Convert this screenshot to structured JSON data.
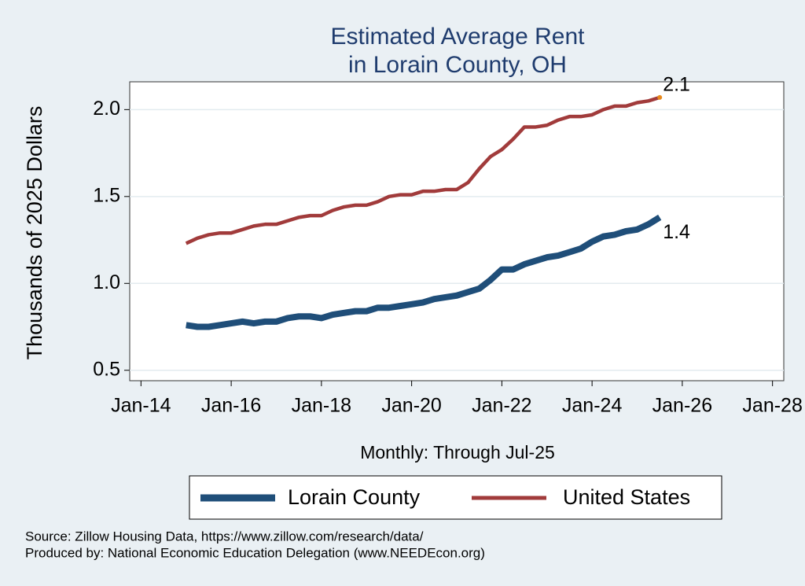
{
  "chart_data": {
    "type": "line",
    "title": [
      "Estimated Average Rent",
      "in Lorain County, OH"
    ],
    "y_label": "Thousands of 2025 Dollars",
    "x_label": "Monthly: Through Jul-25",
    "notes": [
      "Source: Zillow Housing Data, https://www.zillow.com/research/data/",
      "Produced by: National Economic Education Delegation (www.NEEDEcon.org)"
    ],
    "x": [
      "Jan-15",
      "Apr-15",
      "Jul-15",
      "Oct-15",
      "Jan-16",
      "Apr-16",
      "Jul-16",
      "Oct-16",
      "Jan-17",
      "Apr-17",
      "Jul-17",
      "Oct-17",
      "Jan-18",
      "Apr-18",
      "Jul-18",
      "Oct-18",
      "Jan-19",
      "Apr-19",
      "Jul-19",
      "Oct-19",
      "Jan-20",
      "Apr-20",
      "Jul-20",
      "Oct-20",
      "Jan-21",
      "Apr-21",
      "Jul-21",
      "Oct-21",
      "Jan-22",
      "Apr-22",
      "Jul-22",
      "Oct-22",
      "Jan-23",
      "Apr-23",
      "Jul-23",
      "Oct-23",
      "Jan-24",
      "Apr-24",
      "Jul-24",
      "Oct-24",
      "Jan-25",
      "Apr-25",
      "Jul-25"
    ],
    "series": [
      {
        "name": "Lorain County",
        "color": "#1f4e79",
        "values": [
          0.76,
          0.75,
          0.75,
          0.76,
          0.77,
          0.78,
          0.77,
          0.78,
          0.78,
          0.8,
          0.81,
          0.81,
          0.8,
          0.82,
          0.83,
          0.84,
          0.84,
          0.86,
          0.86,
          0.87,
          0.88,
          0.89,
          0.91,
          0.92,
          0.93,
          0.95,
          0.97,
          1.02,
          1.08,
          1.08,
          1.11,
          1.13,
          1.15,
          1.16,
          1.18,
          1.2,
          1.24,
          1.27,
          1.28,
          1.3,
          1.31,
          1.34,
          1.38
        ],
        "value_labels": [
          null,
          null,
          null,
          null,
          null,
          null,
          null,
          null,
          null,
          null,
          null,
          null,
          null,
          null,
          null,
          null,
          null,
          null,
          null,
          null,
          null,
          null,
          null,
          null,
          null,
          null,
          null,
          null,
          null,
          null,
          null,
          null,
          null,
          null,
          null,
          null,
          null,
          null,
          null,
          null,
          null,
          null,
          "1.4"
        ]
      },
      {
        "name": "United States",
        "color": "#a13b3b",
        "values": [
          1.23,
          1.26,
          1.28,
          1.29,
          1.29,
          1.31,
          1.33,
          1.34,
          1.34,
          1.36,
          1.38,
          1.39,
          1.39,
          1.42,
          1.44,
          1.45,
          1.45,
          1.47,
          1.5,
          1.51,
          1.51,
          1.53,
          1.53,
          1.54,
          1.54,
          1.58,
          1.66,
          1.73,
          1.77,
          1.83,
          1.9,
          1.9,
          1.91,
          1.94,
          1.96,
          1.96,
          1.97,
          2.0,
          2.02,
          2.02,
          2.04,
          2.05,
          2.07
        ],
        "value_labels": [
          null,
          null,
          null,
          null,
          null,
          null,
          null,
          null,
          null,
          null,
          null,
          null,
          null,
          null,
          null,
          null,
          null,
          null,
          null,
          null,
          null,
          null,
          null,
          null,
          null,
          null,
          null,
          null,
          null,
          null,
          null,
          null,
          null,
          null,
          null,
          null,
          null,
          null,
          null,
          null,
          null,
          null,
          "2.1"
        ]
      }
    ],
    "end_marker_color": "#e8891c",
    "xlim": [
      "Oct-13",
      "Apr-28"
    ],
    "xticks": [
      "Jan-14",
      "Jan-16",
      "Jan-18",
      "Jan-20",
      "Jan-22",
      "Jan-24",
      "Jan-26",
      "Jan-28"
    ],
    "ylim": [
      0.44,
      2.16
    ],
    "yticks": [
      0.5,
      {
        "value": 1,
        "label": "1.0"
      },
      1.5,
      {
        "value": 2,
        "label": "2.0"
      }
    ],
    "grid": true
  }
}
